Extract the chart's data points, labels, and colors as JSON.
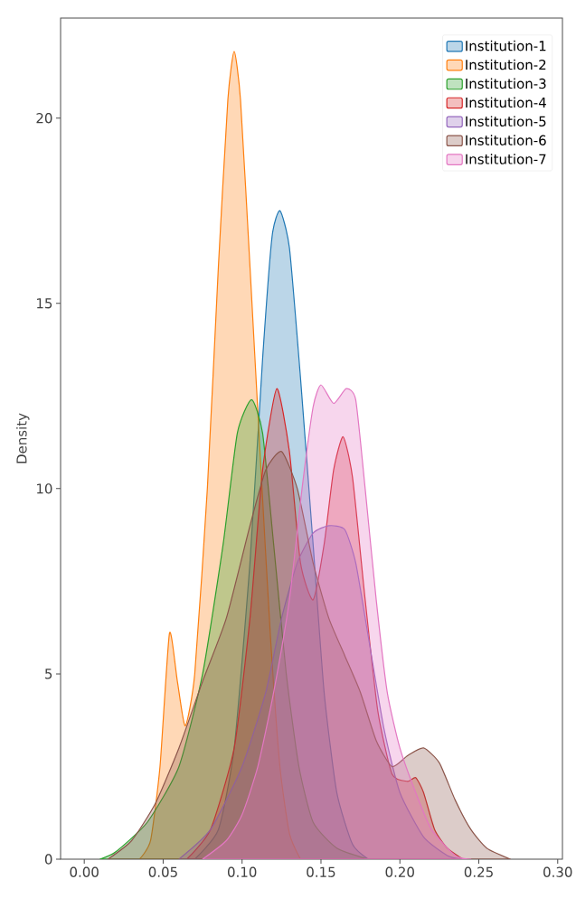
{
  "chart_data": {
    "type": "area",
    "ylabel": "Density",
    "xlim": [
      -0.015,
      0.303
    ],
    "ylim": [
      0,
      22.7
    ],
    "xticks": [
      {
        "value": 0,
        "label": "0.00"
      },
      0.05,
      {
        "value": 0.1,
        "label": "0.10"
      },
      0.15,
      {
        "value": 0.2,
        "label": "0.20"
      },
      0.25,
      {
        "value": 0.3,
        "label": "0.30"
      }
    ],
    "yticks": [
      0,
      5,
      10,
      15,
      20
    ],
    "legend": "top right",
    "grid": false,
    "series": [
      {
        "name": "Institution-1",
        "color": "#1f77b4",
        "x": [
          0.07,
          0.085,
          0.095,
          0.105,
          0.113,
          0.119,
          0.124,
          0.13,
          0.137,
          0.145,
          0.152,
          0.16,
          0.17,
          0.18
        ],
        "values": [
          0,
          0.8,
          3,
          8,
          13.5,
          16.8,
          17.5,
          16.5,
          13,
          8.5,
          4.5,
          1.8,
          0.4,
          0
        ]
      },
      {
        "name": "Institution-2",
        "color": "#ff7f0e",
        "x": [
          0.035,
          0.042,
          0.048,
          0.054,
          0.059,
          0.064,
          0.07,
          0.078,
          0.085,
          0.091,
          0.095,
          0.099,
          0.105,
          0.112,
          0.118,
          0.124,
          0.13,
          0.137
        ],
        "values": [
          0,
          0.5,
          2.5,
          6.1,
          4.8,
          3.6,
          5,
          10,
          16,
          20.5,
          21.8,
          20.5,
          16,
          10.5,
          6,
          2.5,
          0.7,
          0
        ]
      },
      {
        "name": "Institution-3",
        "color": "#2ca02c",
        "x": [
          0.01,
          0.02,
          0.04,
          0.06,
          0.075,
          0.088,
          0.097,
          0.106,
          0.113,
          0.12,
          0.128,
          0.136,
          0.145,
          0.16,
          0.18
        ],
        "values": [
          0,
          0.2,
          1,
          2.5,
          5,
          8.5,
          11.5,
          12.4,
          11.5,
          8.5,
          5,
          2.5,
          1,
          0.3,
          0
        ]
      },
      {
        "name": "Institution-4",
        "color": "#d62728",
        "x": [
          0.065,
          0.08,
          0.095,
          0.105,
          0.113,
          0.122,
          0.13,
          0.137,
          0.145,
          0.152,
          0.158,
          0.164,
          0.17,
          0.178,
          0.186,
          0.195,
          0.205,
          0.21,
          0.215,
          0.222,
          0.23,
          0.24
        ],
        "values": [
          0,
          0.8,
          3,
          6.5,
          10.5,
          12.7,
          11,
          8,
          7,
          8.5,
          10.5,
          11.4,
          10.3,
          7,
          4,
          2.3,
          2.1,
          2.2,
          1.8,
          0.8,
          0.3,
          0
        ]
      },
      {
        "name": "Institution-5",
        "color": "#9467bd",
        "x": [
          0.06,
          0.08,
          0.1,
          0.115,
          0.125,
          0.135,
          0.145,
          0.155,
          0.165,
          0.172,
          0.18,
          0.19,
          0.2,
          0.215,
          0.23,
          0.24
        ],
        "values": [
          0,
          0.8,
          2.5,
          4.5,
          6.5,
          8,
          8.8,
          9,
          8.9,
          8,
          6,
          3.5,
          1.8,
          0.6,
          0.1,
          0
        ]
      },
      {
        "name": "Institution-6",
        "color": "#8c564b",
        "x": [
          0.015,
          0.03,
          0.045,
          0.06,
          0.075,
          0.09,
          0.105,
          0.115,
          0.125,
          0.135,
          0.145,
          0.155,
          0.165,
          0.175,
          0.185,
          0.195,
          0.205,
          0.215,
          0.225,
          0.235,
          0.245,
          0.255,
          0.27
        ],
        "values": [
          0,
          0.5,
          1.5,
          3,
          4.8,
          6.5,
          9,
          10.5,
          11,
          10,
          8,
          6.5,
          5.5,
          4.5,
          3.2,
          2.5,
          2.8,
          3,
          2.6,
          1.6,
          0.8,
          0.3,
          0
        ]
      },
      {
        "name": "Institution-7",
        "color": "#e377c2",
        "x": [
          0.075,
          0.09,
          0.1,
          0.11,
          0.12,
          0.13,
          0.138,
          0.145,
          0.15,
          0.158,
          0.166,
          0.172,
          0.178,
          0.185,
          0.192,
          0.2,
          0.21,
          0.22,
          0.235,
          0.245
        ],
        "values": [
          0,
          0.5,
          1.2,
          2.5,
          4.5,
          7,
          10,
          12.2,
          12.8,
          12.3,
          12.7,
          12.4,
          10,
          7,
          4.5,
          3,
          1.8,
          0.8,
          0.1,
          0
        ]
      }
    ]
  }
}
